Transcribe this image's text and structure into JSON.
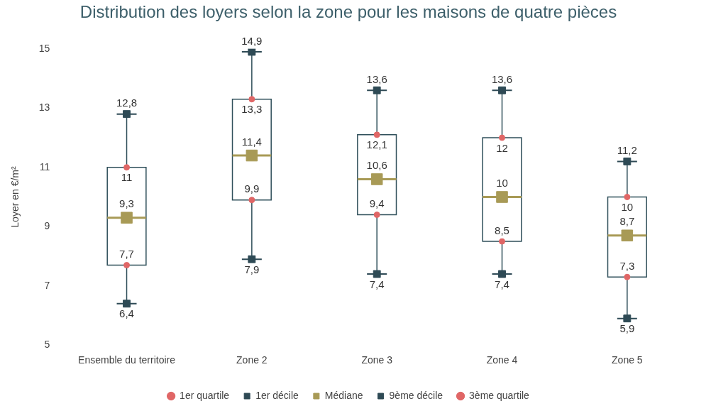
{
  "chart_data": {
    "type": "box",
    "title": "Distribution des loyers selon la zone pour les maisons de quatre pièces",
    "ylabel": "Loyer en €/m²",
    "categories": [
      "Ensemble du territoire",
      "Zone 2",
      "Zone 3",
      "Zone 4",
      "Zone 5"
    ],
    "boxes": [
      {
        "low": 6.4,
        "q1": 7.7,
        "median": 9.3,
        "q3": 11,
        "high": 12.8
      },
      {
        "low": 7.9,
        "q1": 9.9,
        "median": 11.4,
        "q3": 13.3,
        "high": 14.9
      },
      {
        "low": 7.4,
        "q1": 9.4,
        "median": 10.6,
        "q3": 12.1,
        "high": 13.6
      },
      {
        "low": 7.4,
        "q1": 8.5,
        "median": 10,
        "q3": 12,
        "high": 13.6
      },
      {
        "low": 5.9,
        "q1": 7.3,
        "median": 8.7,
        "q3": 10,
        "high": 11.2
      }
    ],
    "color": "#2f4f5a",
    "series": [
      {
        "name": "1er quartile",
        "type": "scatter",
        "marker": "circle",
        "color": "#e06666",
        "values": [
          7.7,
          9.9,
          9.4,
          8.5,
          7.3
        ],
        "value_labels": [
          "7,7",
          "9,9",
          "9,4",
          "8,5",
          "7,3"
        ]
      },
      {
        "name": "1er décile",
        "type": "scatter",
        "marker": "square",
        "color": "#2e4a55",
        "values": [
          6.4,
          7.9,
          7.4,
          7.4,
          5.9
        ],
        "value_labels": [
          "6,4",
          "7,9",
          "7,4",
          "7,4",
          "5,9"
        ]
      },
      {
        "name": "Médiane",
        "type": "scatter",
        "marker": "square",
        "color": "#a89a56",
        "values": [
          9.3,
          11.4,
          10.6,
          10,
          8.7
        ],
        "value_labels": [
          "9,3",
          "11,4",
          "10,6",
          "10",
          "8,7"
        ]
      },
      {
        "name": "9ème décile",
        "type": "scatter",
        "marker": "square",
        "color": "#2e4a55",
        "values": [
          12.8,
          14.9,
          13.6,
          13.6,
          11.2
        ],
        "value_labels": [
          "12,8",
          "14,9",
          "13,6",
          "13,6",
          "11,2"
        ]
      },
      {
        "name": "3ème quartile",
        "type": "scatter",
        "marker": "circle",
        "color": "#e06666",
        "values": [
          11,
          13.3,
          12.1,
          12,
          10
        ],
        "value_labels": [
          "11",
          "13,3",
          "12,1",
          "12",
          "10"
        ]
      }
    ],
    "ylim": [
      5,
      15
    ],
    "yticks": [
      5,
      7,
      9,
      11,
      13,
      15
    ],
    "grid": false,
    "legend": "bottom"
  }
}
